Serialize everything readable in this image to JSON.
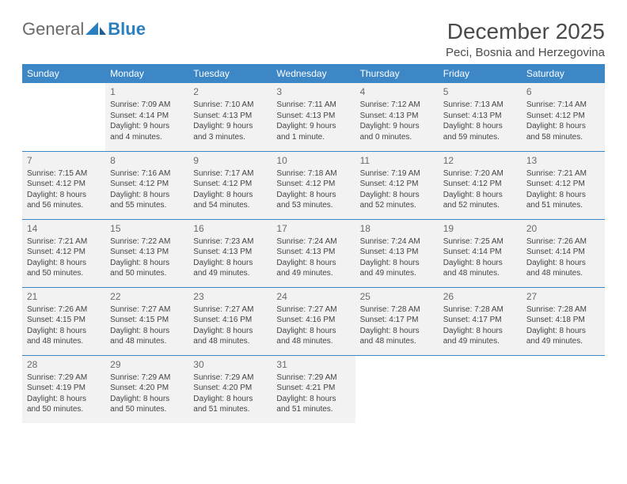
{
  "brand": {
    "part1": "General",
    "part2": "Blue"
  },
  "title": "December 2025",
  "location": "Peci, Bosnia and Herzegovina",
  "weekdays": [
    "Sunday",
    "Monday",
    "Tuesday",
    "Wednesday",
    "Thursday",
    "Friday",
    "Saturday"
  ],
  "colors": {
    "header_bg": "#3d87c7",
    "header_text": "#ffffff",
    "cell_bg": "#f2f2f2",
    "rule": "#3d87c7",
    "title_text": "#4a4a4a",
    "logo_gray": "#6a6a6a",
    "logo_blue": "#2a7fbf"
  },
  "weeks": [
    [
      null,
      {
        "day": "1",
        "sunrise": "Sunrise: 7:09 AM",
        "sunset": "Sunset: 4:14 PM",
        "daylight": "Daylight: 9 hours and 4 minutes."
      },
      {
        "day": "2",
        "sunrise": "Sunrise: 7:10 AM",
        "sunset": "Sunset: 4:13 PM",
        "daylight": "Daylight: 9 hours and 3 minutes."
      },
      {
        "day": "3",
        "sunrise": "Sunrise: 7:11 AM",
        "sunset": "Sunset: 4:13 PM",
        "daylight": "Daylight: 9 hours and 1 minute."
      },
      {
        "day": "4",
        "sunrise": "Sunrise: 7:12 AM",
        "sunset": "Sunset: 4:13 PM",
        "daylight": "Daylight: 9 hours and 0 minutes."
      },
      {
        "day": "5",
        "sunrise": "Sunrise: 7:13 AM",
        "sunset": "Sunset: 4:13 PM",
        "daylight": "Daylight: 8 hours and 59 minutes."
      },
      {
        "day": "6",
        "sunrise": "Sunrise: 7:14 AM",
        "sunset": "Sunset: 4:12 PM",
        "daylight": "Daylight: 8 hours and 58 minutes."
      }
    ],
    [
      {
        "day": "7",
        "sunrise": "Sunrise: 7:15 AM",
        "sunset": "Sunset: 4:12 PM",
        "daylight": "Daylight: 8 hours and 56 minutes."
      },
      {
        "day": "8",
        "sunrise": "Sunrise: 7:16 AM",
        "sunset": "Sunset: 4:12 PM",
        "daylight": "Daylight: 8 hours and 55 minutes."
      },
      {
        "day": "9",
        "sunrise": "Sunrise: 7:17 AM",
        "sunset": "Sunset: 4:12 PM",
        "daylight": "Daylight: 8 hours and 54 minutes."
      },
      {
        "day": "10",
        "sunrise": "Sunrise: 7:18 AM",
        "sunset": "Sunset: 4:12 PM",
        "daylight": "Daylight: 8 hours and 53 minutes."
      },
      {
        "day": "11",
        "sunrise": "Sunrise: 7:19 AM",
        "sunset": "Sunset: 4:12 PM",
        "daylight": "Daylight: 8 hours and 52 minutes."
      },
      {
        "day": "12",
        "sunrise": "Sunrise: 7:20 AM",
        "sunset": "Sunset: 4:12 PM",
        "daylight": "Daylight: 8 hours and 52 minutes."
      },
      {
        "day": "13",
        "sunrise": "Sunrise: 7:21 AM",
        "sunset": "Sunset: 4:12 PM",
        "daylight": "Daylight: 8 hours and 51 minutes."
      }
    ],
    [
      {
        "day": "14",
        "sunrise": "Sunrise: 7:21 AM",
        "sunset": "Sunset: 4:12 PM",
        "daylight": "Daylight: 8 hours and 50 minutes."
      },
      {
        "day": "15",
        "sunrise": "Sunrise: 7:22 AM",
        "sunset": "Sunset: 4:13 PM",
        "daylight": "Daylight: 8 hours and 50 minutes."
      },
      {
        "day": "16",
        "sunrise": "Sunrise: 7:23 AM",
        "sunset": "Sunset: 4:13 PM",
        "daylight": "Daylight: 8 hours and 49 minutes."
      },
      {
        "day": "17",
        "sunrise": "Sunrise: 7:24 AM",
        "sunset": "Sunset: 4:13 PM",
        "daylight": "Daylight: 8 hours and 49 minutes."
      },
      {
        "day": "18",
        "sunrise": "Sunrise: 7:24 AM",
        "sunset": "Sunset: 4:13 PM",
        "daylight": "Daylight: 8 hours and 49 minutes."
      },
      {
        "day": "19",
        "sunrise": "Sunrise: 7:25 AM",
        "sunset": "Sunset: 4:14 PM",
        "daylight": "Daylight: 8 hours and 48 minutes."
      },
      {
        "day": "20",
        "sunrise": "Sunrise: 7:26 AM",
        "sunset": "Sunset: 4:14 PM",
        "daylight": "Daylight: 8 hours and 48 minutes."
      }
    ],
    [
      {
        "day": "21",
        "sunrise": "Sunrise: 7:26 AM",
        "sunset": "Sunset: 4:15 PM",
        "daylight": "Daylight: 8 hours and 48 minutes."
      },
      {
        "day": "22",
        "sunrise": "Sunrise: 7:27 AM",
        "sunset": "Sunset: 4:15 PM",
        "daylight": "Daylight: 8 hours and 48 minutes."
      },
      {
        "day": "23",
        "sunrise": "Sunrise: 7:27 AM",
        "sunset": "Sunset: 4:16 PM",
        "daylight": "Daylight: 8 hours and 48 minutes."
      },
      {
        "day": "24",
        "sunrise": "Sunrise: 7:27 AM",
        "sunset": "Sunset: 4:16 PM",
        "daylight": "Daylight: 8 hours and 48 minutes."
      },
      {
        "day": "25",
        "sunrise": "Sunrise: 7:28 AM",
        "sunset": "Sunset: 4:17 PM",
        "daylight": "Daylight: 8 hours and 48 minutes."
      },
      {
        "day": "26",
        "sunrise": "Sunrise: 7:28 AM",
        "sunset": "Sunset: 4:17 PM",
        "daylight": "Daylight: 8 hours and 49 minutes."
      },
      {
        "day": "27",
        "sunrise": "Sunrise: 7:28 AM",
        "sunset": "Sunset: 4:18 PM",
        "daylight": "Daylight: 8 hours and 49 minutes."
      }
    ],
    [
      {
        "day": "28",
        "sunrise": "Sunrise: 7:29 AM",
        "sunset": "Sunset: 4:19 PM",
        "daylight": "Daylight: 8 hours and 50 minutes."
      },
      {
        "day": "29",
        "sunrise": "Sunrise: 7:29 AM",
        "sunset": "Sunset: 4:20 PM",
        "daylight": "Daylight: 8 hours and 50 minutes."
      },
      {
        "day": "30",
        "sunrise": "Sunrise: 7:29 AM",
        "sunset": "Sunset: 4:20 PM",
        "daylight": "Daylight: 8 hours and 51 minutes."
      },
      {
        "day": "31",
        "sunrise": "Sunrise: 7:29 AM",
        "sunset": "Sunset: 4:21 PM",
        "daylight": "Daylight: 8 hours and 51 minutes."
      },
      null,
      null,
      null
    ]
  ]
}
